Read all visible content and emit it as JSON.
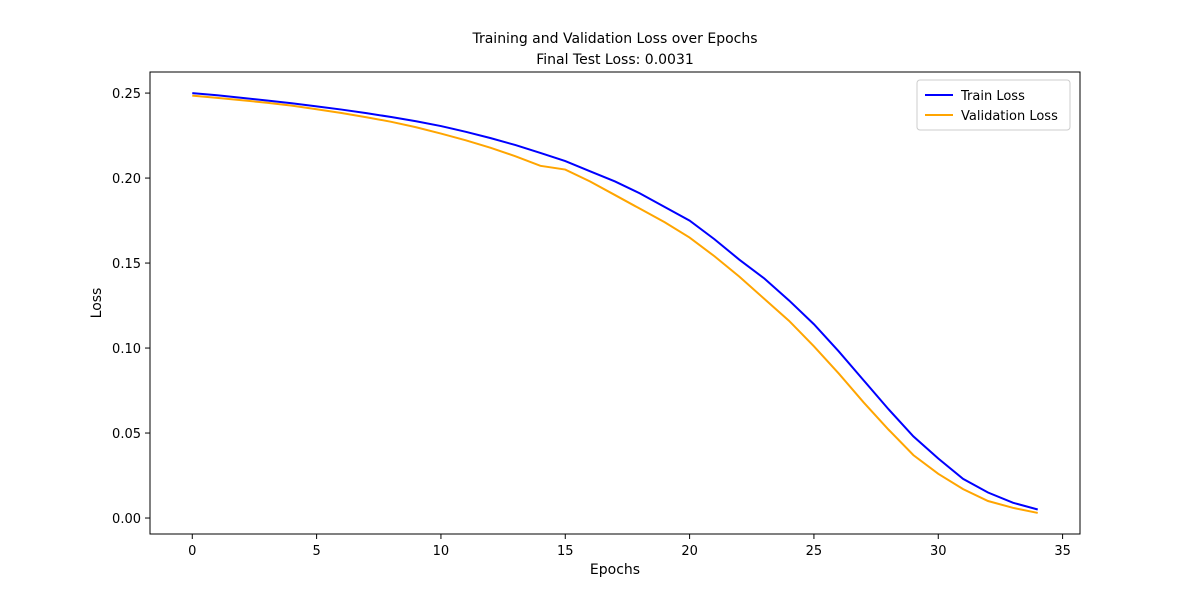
{
  "chart_data": {
    "type": "line",
    "title": "Training and Validation Loss over Epochs",
    "subtitle": "Final Test Loss: 0.0031",
    "x_label": "Epochs",
    "y_label": "Loss",
    "x": [
      0,
      1,
      2,
      3,
      4,
      5,
      6,
      7,
      8,
      9,
      10,
      11,
      12,
      13,
      14,
      15,
      16,
      17,
      18,
      19,
      20,
      21,
      22,
      23,
      24,
      25,
      26,
      27,
      28,
      29,
      30,
      31,
      32,
      33,
      34
    ],
    "series": [
      {
        "name": "Train Loss",
        "color": "#0000ff",
        "values": [
          0.25,
          0.2487,
          0.2472,
          0.2456,
          0.244,
          0.2422,
          0.2403,
          0.2382,
          0.2359,
          0.2334,
          0.2306,
          0.2272,
          0.2235,
          0.2194,
          0.2148,
          0.21,
          0.204,
          0.198,
          0.191,
          0.183,
          0.175,
          0.164,
          0.152,
          0.141,
          0.128,
          0.114,
          0.098,
          0.081,
          0.064,
          0.048,
          0.035,
          0.023,
          0.015,
          0.009,
          0.005
        ]
      },
      {
        "name": "Validation Loss",
        "color": "#ffa500",
        "values": [
          0.2485,
          0.2472,
          0.2458,
          0.2443,
          0.2426,
          0.2405,
          0.2383,
          0.2358,
          0.2331,
          0.2299,
          0.2262,
          0.2222,
          0.2178,
          0.2128,
          0.2072,
          0.205,
          0.198,
          0.19,
          0.182,
          0.174,
          0.165,
          0.154,
          0.142,
          0.129,
          0.116,
          0.101,
          0.085,
          0.068,
          0.052,
          0.037,
          0.026,
          0.017,
          0.01,
          0.006,
          0.003
        ]
      }
    ],
    "xlim": [
      -1.7,
      35.7
    ],
    "xticks": [
      0,
      5,
      10,
      15,
      20,
      25,
      30,
      35
    ],
    "ylim": [
      -0.0094,
      0.2624
    ],
    "yticks": [
      {
        "value": 0,
        "label": "0.00"
      },
      {
        "value": 0.05,
        "label": "0.05"
      },
      {
        "value": 0.1,
        "label": "0.10"
      },
      {
        "value": 0.15,
        "label": "0.15"
      },
      {
        "value": 0.2,
        "label": "0.20"
      },
      {
        "value": 0.25,
        "label": "0.25"
      }
    ],
    "legend": "upper right",
    "grid": false
  }
}
